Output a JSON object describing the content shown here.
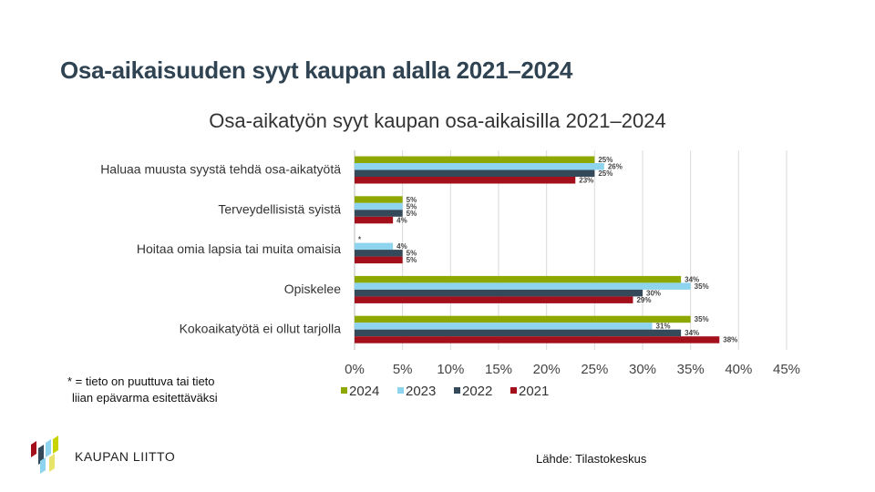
{
  "slide": {
    "title": "Osa-aikaisuuden syyt kaupan alalla 2021–2024",
    "footnote_line1": "* = tieto on puuttuva tai tieto",
    "footnote_line2": "liian epävarma esitettäväksi",
    "source": "Lähde: Tilastokeskus",
    "logo_text": "KAUPAN LIITTO"
  },
  "chart_data": {
    "type": "bar",
    "orientation": "horizontal",
    "title": "Osa-aikatyön syyt kaupan osa-aikaisilla 2021–2024",
    "categories": [
      "Haluaa muusta syystä tehdä osa-aikatyötä",
      "Terveydellisistä syistä",
      "Hoitaa omia lapsia tai muita omaisia",
      "Opiskelee",
      "Kokoaikatyötä ei ollut tarjolla"
    ],
    "series": [
      {
        "name": "2024",
        "color": "#8fa800",
        "values": [
          25,
          5,
          null,
          34,
          35
        ],
        "labels": [
          "25%",
          "5%",
          "*",
          "34%",
          "35%"
        ]
      },
      {
        "name": "2023",
        "color": "#8fd4ee",
        "values": [
          26,
          5,
          4,
          35,
          31
        ],
        "labels": [
          "26%",
          "5%",
          "4%",
          "35%",
          "31%"
        ]
      },
      {
        "name": "2022",
        "color": "#34495a",
        "values": [
          25,
          5,
          5,
          30,
          34
        ],
        "labels": [
          "25%",
          "5%",
          "5%",
          "30%",
          "34%"
        ]
      },
      {
        "name": "2021",
        "color": "#a30f1a",
        "values": [
          23,
          4,
          5,
          29,
          38
        ],
        "labels": [
          "23%",
          "4%",
          "5%",
          "29%",
          "38%"
        ]
      }
    ],
    "xlim": [
      0,
      45
    ],
    "xticks": [
      "0%",
      "5%",
      "10%",
      "15%",
      "20%",
      "25%",
      "30%",
      "35%",
      "40%",
      "45%"
    ],
    "grid": true,
    "legend_position": "bottom"
  }
}
